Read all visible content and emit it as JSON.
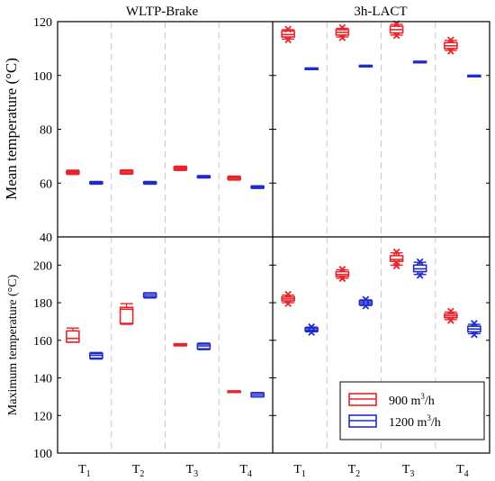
{
  "chart_data": {
    "type": "box",
    "column_titles": [
      "WLTP-Brake",
      "3h-LACT"
    ],
    "x_ticks": [
      {
        "base": "T",
        "sub": "1"
      },
      {
        "base": "T",
        "sub": "2"
      },
      {
        "base": "T",
        "sub": "3"
      },
      {
        "base": "T",
        "sub": "4"
      }
    ],
    "rows": [
      {
        "ylabel": "Mean temperature (°C)",
        "ylim": [
          40,
          120
        ],
        "yticks": [
          40,
          60,
          80,
          100,
          120
        ],
        "label_size": 17
      },
      {
        "ylabel": "Maximum temperature (°C)",
        "ylim": [
          100,
          215
        ],
        "yticks": [
          100,
          120,
          140,
          160,
          180,
          200
        ],
        "label_size": 14
      }
    ],
    "legend": {
      "position": "bottom-right",
      "entries": [
        {
          "key": "s900",
          "text": "900 m",
          "sup": "3",
          "tail": "/h"
        },
        {
          "key": "s1200",
          "text": "1200 m",
          "sup": "3",
          "tail": "/h"
        }
      ]
    },
    "colors": {
      "s900": "#e8232a",
      "s1200": "#1f2ccc",
      "grid": "#c8c8c8",
      "axis": "#000000"
    },
    "series": [
      {
        "key": "s900",
        "panels": [
          [
            {
              "q1": 63.5,
              "q3": 64.5,
              "median": 64.0,
              "wlo": 63.2,
              "whi": 64.8,
              "outliers": []
            },
            {
              "q1": 63.6,
              "q3": 64.6,
              "median": 64.1,
              "wlo": 63.3,
              "whi": 64.9,
              "outliers": []
            },
            {
              "q1": 65.0,
              "q3": 66.0,
              "median": 65.5,
              "wlo": 64.7,
              "whi": 66.3,
              "outliers": []
            },
            {
              "q1": 61.4,
              "q3": 62.3,
              "median": 61.9,
              "wlo": 61.1,
              "whi": 62.6,
              "outliers": []
            }
          ],
          [
            {
              "q1": 114.3,
              "q3": 116.5,
              "median": 115.2,
              "wlo": 113.5,
              "whi": 117.0,
              "outliers": [
                113.2,
                117.2
              ]
            },
            {
              "q1": 115.0,
              "q3": 117.0,
              "median": 116.0,
              "wlo": 114.3,
              "whi": 117.5,
              "outliers": [
                114.0,
                117.8
              ]
            },
            {
              "q1": 115.8,
              "q3": 118.3,
              "median": 117.0,
              "wlo": 115.0,
              "whi": 119.0,
              "outliers": [
                114.8,
                119.2
              ]
            },
            {
              "q1": 110.0,
              "q3": 112.2,
              "median": 111.0,
              "wlo": 109.3,
              "whi": 113.0,
              "outliers": [
                109.0,
                113.2
              ]
            }
          ],
          [
            {
              "q1": 159.0,
              "q3": 165.0,
              "median": 161.0,
              "wlo": 159.0,
              "whi": 166.5,
              "outliers": []
            },
            {
              "q1": 169.0,
              "q3": 177.5,
              "median": 176.5,
              "wlo": 168.5,
              "whi": 179.5,
              "outliers": []
            },
            {
              "q1": 157.2,
              "q3": 158.0,
              "median": 157.6,
              "wlo": 157.0,
              "whi": 158.2,
              "outliers": []
            },
            {
              "q1": 132.4,
              "q3": 133.0,
              "median": 132.7,
              "wlo": 132.3,
              "whi": 133.1,
              "outliers": []
            }
          ],
          [
            {
              "q1": 181.0,
              "q3": 183.0,
              "median": 182.0,
              "wlo": 180.0,
              "whi": 184.0,
              "outliers": [
                179.5,
                184.5
              ]
            },
            {
              "q1": 194.0,
              "q3": 196.5,
              "median": 195.0,
              "wlo": 193.0,
              "whi": 197.5,
              "outliers": [
                192.8,
                197.8
              ]
            },
            {
              "q1": 202.0,
              "q3": 205.0,
              "median": 203.0,
              "wlo": 200.0,
              "whi": 206.5,
              "outliers": [
                199.5,
                201.0,
                207.0
              ]
            },
            {
              "q1": 172.0,
              "q3": 174.0,
              "median": 173.0,
              "wlo": 171.0,
              "whi": 175.0,
              "outliers": [
                170.5,
                175.5
              ]
            }
          ]
        ]
      },
      {
        "key": "s1200",
        "panels": [
          [
            {
              "q1": 59.8,
              "q3": 60.4,
              "median": 60.1,
              "wlo": 59.6,
              "whi": 60.6,
              "outliers": []
            },
            {
              "q1": 59.8,
              "q3": 60.4,
              "median": 60.1,
              "wlo": 59.6,
              "whi": 60.6,
              "outliers": []
            },
            {
              "q1": 62.1,
              "q3": 62.6,
              "median": 62.3,
              "wlo": 61.9,
              "whi": 62.8,
              "outliers": []
            },
            {
              "q1": 58.2,
              "q3": 58.8,
              "median": 58.5,
              "wlo": 58.0,
              "whi": 59.0,
              "outliers": []
            }
          ],
          [
            {
              "q1": 102.3,
              "q3": 102.7,
              "median": 102.5,
              "wlo": 102.2,
              "whi": 102.8,
              "outliers": []
            },
            {
              "q1": 103.3,
              "q3": 103.7,
              "median": 103.5,
              "wlo": 103.2,
              "whi": 103.8,
              "outliers": []
            },
            {
              "q1": 104.8,
              "q3": 105.2,
              "median": 105.0,
              "wlo": 104.7,
              "whi": 105.3,
              "outliers": []
            },
            {
              "q1": 99.6,
              "q3": 100.0,
              "median": 99.8,
              "wlo": 99.5,
              "whi": 100.1,
              "outliers": []
            }
          ],
          [
            {
              "q1": 150.5,
              "q3": 153.0,
              "median": 152.0,
              "wlo": 150.0,
              "whi": 153.5,
              "outliers": []
            },
            {
              "q1": 183.0,
              "q3": 185.0,
              "median": 184.0,
              "wlo": 182.5,
              "whi": 185.3,
              "outliers": []
            },
            {
              "q1": 155.5,
              "q3": 158.0,
              "median": 157.0,
              "wlo": 155.0,
              "whi": 158.5,
              "outliers": []
            },
            {
              "q1": 130.0,
              "q3": 132.0,
              "median": 131.0,
              "wlo": 129.8,
              "whi": 132.2,
              "outliers": []
            }
          ],
          [
            {
              "q1": 165.0,
              "q3": 166.5,
              "median": 165.5,
              "wlo": 164.5,
              "whi": 167.0,
              "outliers": [
                164.2,
                167.2
              ]
            },
            {
              "q1": 179.0,
              "q3": 181.0,
              "median": 180.0,
              "wlo": 178.5,
              "whi": 181.5,
              "outliers": [
                178.2,
                181.8
              ]
            },
            {
              "q1": 196.5,
              "q3": 200.0,
              "median": 198.0,
              "wlo": 195.0,
              "whi": 201.5,
              "outliers": [
                194.5,
                201.8
              ]
            },
            {
              "q1": 164.5,
              "q3": 167.5,
              "median": 166.0,
              "wlo": 163.5,
              "whi": 168.5,
              "outliers": [
                163.0,
                169.0
              ]
            }
          ]
        ]
      }
    ]
  }
}
